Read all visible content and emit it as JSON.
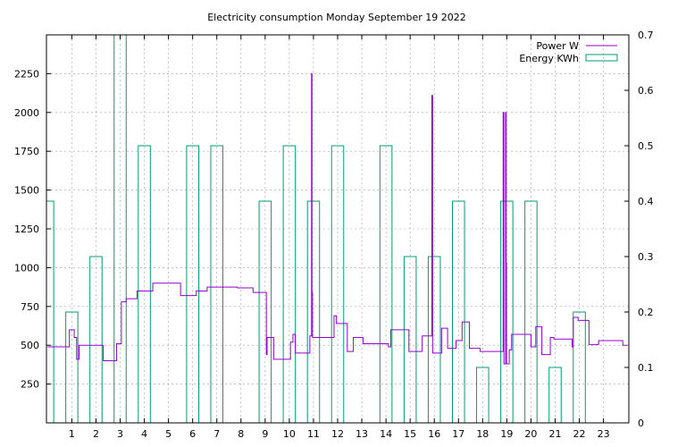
{
  "chart_data": {
    "type": "line",
    "title": "Electricity consumption Monday September 19 2022",
    "xlabel": "",
    "ylabel": "",
    "y2label": "",
    "xlim": [
      -0.05,
      24.05
    ],
    "ylim": [
      0,
      2500
    ],
    "y2lim": [
      0,
      0.7
    ],
    "x_ticks": [
      1,
      2,
      3,
      4,
      5,
      6,
      7,
      8,
      9,
      10,
      11,
      12,
      13,
      14,
      15,
      16,
      17,
      18,
      19,
      20,
      21,
      22,
      23
    ],
    "y_ticks": [
      250,
      500,
      750,
      1000,
      1250,
      1500,
      1750,
      2000,
      2250
    ],
    "y2_ticks": [
      0,
      0.1,
      0.2,
      0.3,
      0.4,
      0.5,
      0.6,
      0.7
    ],
    "grid": true,
    "legend_position": "top-right",
    "colors": {
      "power": "#9400D3",
      "energy": "#009E73",
      "grid": "#a0a0a0",
      "axis": "#000000"
    },
    "series": [
      {
        "name": "Power W",
        "axis": "y1",
        "style": "steps",
        "points": [
          [
            0,
            490
          ],
          [
            0.9,
            490
          ],
          [
            0.9,
            600
          ],
          [
            1.1,
            600
          ],
          [
            1.1,
            550
          ],
          [
            1.2,
            550
          ],
          [
            1.2,
            410
          ],
          [
            1.3,
            410
          ],
          [
            1.3,
            500
          ],
          [
            2.3,
            500
          ],
          [
            2.3,
            400
          ],
          [
            2.85,
            400
          ],
          [
            2.85,
            510
          ],
          [
            3.05,
            510
          ],
          [
            3.05,
            780
          ],
          [
            3.25,
            780
          ],
          [
            3.25,
            800
          ],
          [
            3.7,
            800
          ],
          [
            3.7,
            850
          ],
          [
            4.35,
            850
          ],
          [
            4.35,
            900
          ],
          [
            5.5,
            900
          ],
          [
            5.5,
            820
          ],
          [
            6.15,
            820
          ],
          [
            6.15,
            850
          ],
          [
            6.6,
            850
          ],
          [
            6.6,
            875
          ],
          [
            7.85,
            875
          ],
          [
            7.85,
            870
          ],
          [
            8.5,
            870
          ],
          [
            8.5,
            840
          ],
          [
            9.05,
            840
          ],
          [
            9.05,
            440
          ],
          [
            9.08,
            440
          ],
          [
            9.08,
            550
          ],
          [
            9.35,
            550
          ],
          [
            9.35,
            410
          ],
          [
            10.05,
            410
          ],
          [
            10.05,
            520
          ],
          [
            10.15,
            520
          ],
          [
            10.15,
            570
          ],
          [
            10.25,
            570
          ],
          [
            10.25,
            450
          ],
          [
            10.85,
            450
          ],
          [
            10.85,
            560
          ],
          [
            10.92,
            560
          ],
          [
            10.92,
            2250
          ],
          [
            10.94,
            2250
          ],
          [
            10.94,
            840
          ],
          [
            10.96,
            840
          ],
          [
            10.96,
            550
          ],
          [
            11.85,
            550
          ],
          [
            11.85,
            690
          ],
          [
            11.95,
            690
          ],
          [
            11.95,
            640
          ],
          [
            12.4,
            640
          ],
          [
            12.4,
            460
          ],
          [
            12.65,
            460
          ],
          [
            12.65,
            550
          ],
          [
            13.05,
            550
          ],
          [
            13.05,
            510
          ],
          [
            14.1,
            510
          ],
          [
            14.1,
            490
          ],
          [
            14.2,
            490
          ],
          [
            14.2,
            600
          ],
          [
            14.95,
            600
          ],
          [
            14.95,
            460
          ],
          [
            15.5,
            460
          ],
          [
            15.5,
            560
          ],
          [
            15.9,
            560
          ],
          [
            15.9,
            2110
          ],
          [
            15.93,
            2110
          ],
          [
            15.93,
            450
          ],
          [
            16.3,
            450
          ],
          [
            16.3,
            610
          ],
          [
            16.55,
            610
          ],
          [
            16.55,
            480
          ],
          [
            16.9,
            480
          ],
          [
            16.9,
            530
          ],
          [
            17.15,
            530
          ],
          [
            17.15,
            650
          ],
          [
            17.45,
            650
          ],
          [
            17.45,
            480
          ],
          [
            17.9,
            480
          ],
          [
            17.9,
            460
          ],
          [
            18.85,
            460
          ],
          [
            18.85,
            2000
          ],
          [
            18.88,
            2000
          ],
          [
            18.88,
            380
          ],
          [
            18.95,
            380
          ],
          [
            18.95,
            2000
          ],
          [
            18.97,
            2000
          ],
          [
            18.97,
            1030
          ],
          [
            18.99,
            1030
          ],
          [
            18.99,
            380
          ],
          [
            19.1,
            380
          ],
          [
            19.1,
            470
          ],
          [
            19.2,
            470
          ],
          [
            19.2,
            570
          ],
          [
            20.0,
            570
          ],
          [
            20.0,
            490
          ],
          [
            20.2,
            490
          ],
          [
            20.2,
            620
          ],
          [
            20.45,
            620
          ],
          [
            20.45,
            440
          ],
          [
            20.8,
            440
          ],
          [
            20.8,
            550
          ],
          [
            20.95,
            550
          ],
          [
            20.95,
            540
          ],
          [
            21.7,
            540
          ],
          [
            21.7,
            490
          ],
          [
            21.75,
            490
          ],
          [
            21.75,
            680
          ],
          [
            21.95,
            680
          ],
          [
            21.95,
            660
          ],
          [
            22.4,
            660
          ],
          [
            22.4,
            505
          ],
          [
            22.8,
            505
          ],
          [
            22.8,
            530
          ],
          [
            23.8,
            530
          ],
          [
            23.8,
            500
          ],
          [
            24,
            500
          ]
        ]
      },
      {
        "name": "Energy KWh",
        "axis": "y2",
        "style": "boxes",
        "box_width": 0.5,
        "x": [
          0,
          1,
          2,
          3,
          4,
          5,
          6,
          7,
          8,
          9,
          10,
          11,
          12,
          13,
          14,
          15,
          16,
          17,
          18,
          19,
          20,
          21,
          22,
          23
        ],
        "values": [
          0.4,
          0.2,
          0.3,
          0.7,
          0.5,
          0,
          0.5,
          0.5,
          0,
          0.4,
          0.5,
          0.4,
          0.5,
          0,
          0.5,
          0.3,
          0.3,
          0.4,
          0.1,
          0.4,
          0.4,
          0.1,
          0.2,
          0
        ]
      }
    ]
  }
}
